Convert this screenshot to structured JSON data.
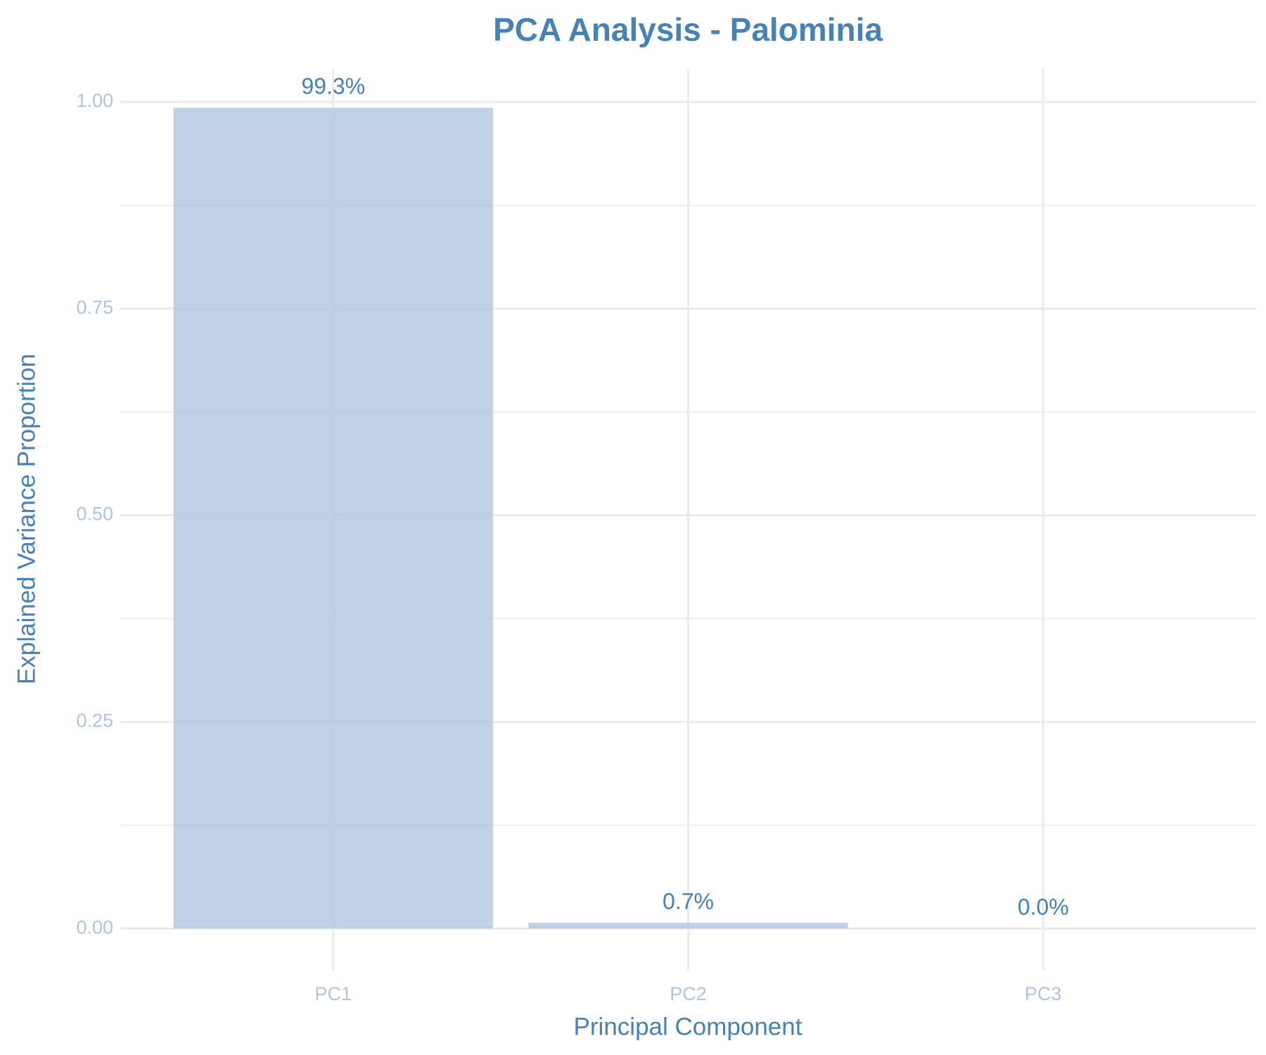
{
  "chart_data": {
    "type": "bar",
    "title": "PCA Analysis - Palominia",
    "x_label": "Principal Component",
    "y_label": "Explained Variance Proportion",
    "categories": [
      "PC1",
      "PC2",
      "PC3"
    ],
    "values": [
      0.993,
      0.007,
      0.0
    ],
    "value_labels": [
      "99.3%",
      "0.7%",
      "0.0%"
    ],
    "color": "#b0c4de",
    "ylim": [
      -0.05,
      1.04
    ],
    "yticks": [
      {
        "value": 0,
        "label": "0.00"
      },
      0.25,
      {
        "value": 0.5,
        "label": "0.50"
      },
      0.75,
      {
        "value": 1,
        "label": "1.00"
      }
    ],
    "minor_yticks": [
      0.125,
      0.375,
      0.625,
      0.875
    ],
    "grid": true
  }
}
